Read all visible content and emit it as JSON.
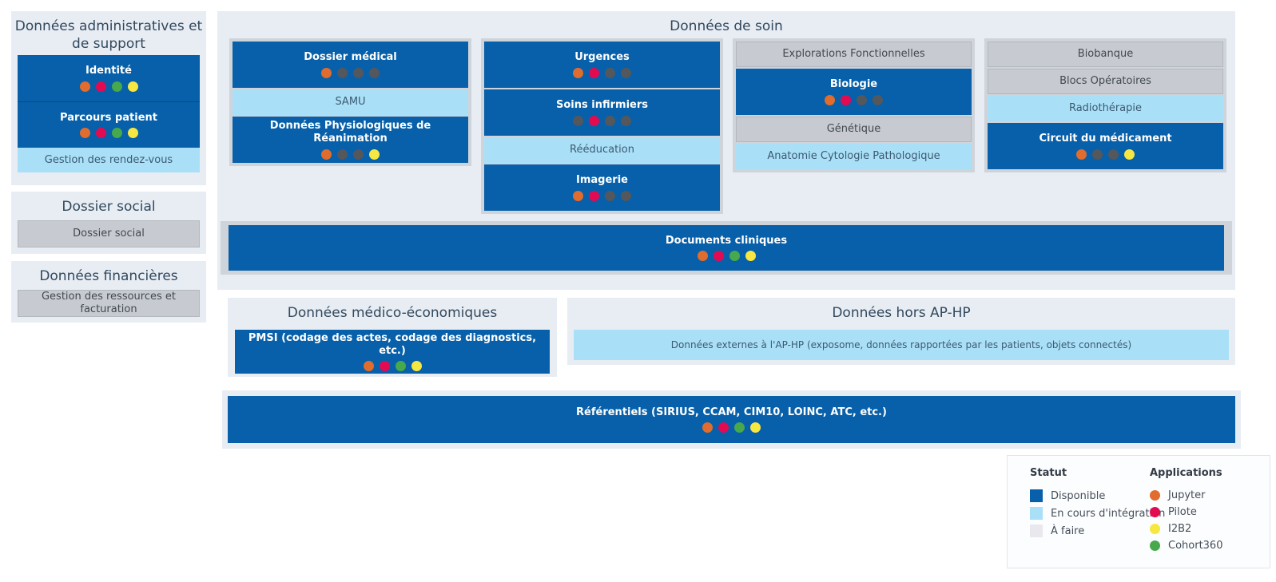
{
  "palette": {
    "blue": "#0760a9",
    "light_blue": "#a9e0f8",
    "panel_bg": "#e8edf4",
    "frame_gray": "#cfd4da",
    "todo_box": "#c7cbd1",
    "todo_swatch": "#e9e9ed",
    "dot_off": "#54575c",
    "jupyter": "#e06c2d",
    "pilote": "#e20b52",
    "cohort360": "#47a84c",
    "i2b2": "#f7e741"
  },
  "app_order": [
    "jupyter",
    "pilote",
    "cohort360",
    "i2b2"
  ],
  "sections": {
    "admin": {
      "title": "Données administratives et de support",
      "stack": [
        {
          "label": "Identité",
          "status": "available",
          "apps": [
            "jupyter",
            "pilote",
            "cohort360",
            "i2b2"
          ]
        },
        {
          "label": "Parcours patient",
          "status": "available",
          "apps": [
            "jupyter",
            "pilote",
            "cohort360",
            "i2b2"
          ]
        },
        {
          "label": "Gestion des rendez-vous",
          "status": "integrating"
        }
      ]
    },
    "social": {
      "title": "Dossier social",
      "stack": [
        {
          "label": "Dossier social",
          "status": "todo"
        }
      ]
    },
    "finance": {
      "title": "Données financières",
      "stack": [
        {
          "label": "Gestion des ressources et facturation",
          "status": "todo"
        }
      ]
    },
    "soin": {
      "title": "Données de soin",
      "groups": [
        [
          {
            "label": "Dossier médical",
            "status": "available",
            "apps": [
              "jupyter"
            ]
          },
          {
            "label": "SAMU",
            "status": "integrating"
          },
          {
            "label": "Données Physiologiques de Réanimation",
            "status": "available",
            "apps": [
              "jupyter",
              "i2b2"
            ]
          }
        ],
        [
          {
            "label": "Urgences",
            "status": "available",
            "apps": [
              "jupyter",
              "pilote"
            ]
          },
          {
            "label": "Soins infirmiers",
            "status": "available",
            "apps": [
              "pilote"
            ]
          },
          {
            "label": "Rééducation",
            "status": "integrating"
          },
          {
            "label": "Imagerie",
            "status": "available",
            "apps": [
              "jupyter",
              "pilote"
            ]
          }
        ],
        [
          {
            "label": "Explorations Fonctionnelles",
            "status": "todo"
          },
          {
            "label": "Biologie",
            "status": "available",
            "apps": [
              "jupyter",
              "pilote"
            ]
          },
          {
            "label": "Génétique",
            "status": "todo"
          },
          {
            "label": "Anatomie Cytologie Pathologique",
            "status": "integrating"
          }
        ],
        [
          {
            "label": "Biobanque",
            "status": "todo"
          },
          {
            "label": "Blocs Opératoires",
            "status": "todo"
          },
          {
            "label": "Radiothérapie",
            "status": "integrating"
          },
          {
            "label": "Circuit du médicament",
            "status": "available",
            "apps": [
              "jupyter",
              "i2b2"
            ]
          }
        ]
      ],
      "wide": {
        "label": "Documents cliniques",
        "status": "available",
        "apps": [
          "jupyter",
          "pilote",
          "cohort360",
          "i2b2"
        ]
      }
    },
    "medico": {
      "title": "Données médico-économiques",
      "stack": [
        {
          "label": "PMSI (codage des actes, codage des diagnostics, etc.)",
          "status": "available",
          "apps": [
            "jupyter",
            "pilote",
            "cohort360",
            "i2b2"
          ]
        }
      ]
    },
    "hors": {
      "title": "Données hors AP-HP",
      "stack": [
        {
          "label": "Données externes à l'AP-HP (exposome, données rapportées par les patients, objets connectés)",
          "status": "integrating"
        }
      ]
    },
    "referentiels": {
      "label": "Référentiels (SIRIUS, CCAM, CIM10, LOINC, ATC, etc.)",
      "status": "available",
      "apps": [
        "jupyter",
        "pilote",
        "cohort360",
        "i2b2"
      ]
    }
  },
  "legend": {
    "statut_title": "Statut",
    "applications_title": "Applications",
    "statuses": [
      {
        "key": "available",
        "label": "Disponible"
      },
      {
        "key": "integrating",
        "label": "En cours d'intégration"
      },
      {
        "key": "todo",
        "label": "À faire"
      }
    ],
    "applications": [
      {
        "key": "jupyter",
        "label": "Jupyter"
      },
      {
        "key": "pilote",
        "label": "Pilote"
      },
      {
        "key": "i2b2",
        "label": "I2B2"
      },
      {
        "key": "cohort360",
        "label": "Cohort360"
      }
    ]
  }
}
